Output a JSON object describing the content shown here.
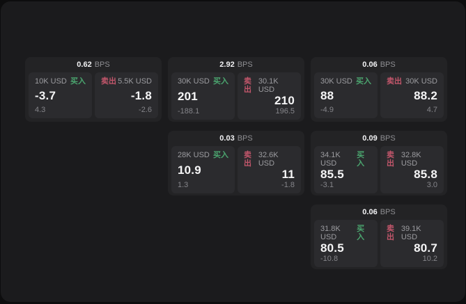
{
  "theme": {
    "background": "#0d0d0e",
    "surface": "#1b1b1d",
    "card": "#232325",
    "panel": "#2b2b2e",
    "buy_green": "#4ba56f",
    "sell_red": "#c2566b",
    "text_primary": "#f5f5f6",
    "text_muted": "#9c9ca0"
  },
  "cards": [
    {
      "bps_value": "0.62",
      "bps_unit": "BPS",
      "buy": {
        "amount": "10K USD",
        "side_label": "买入",
        "value": "-3.7",
        "sub_value": "4.3"
      },
      "sell": {
        "side_label": "卖出",
        "amount": "5.5K USD",
        "value": "-1.8",
        "sub_value": "-2.6"
      }
    },
    {
      "bps_value": "2.92",
      "bps_unit": "BPS",
      "buy": {
        "amount": "30K USD",
        "side_label": "买入",
        "value": "201",
        "sub_value": "-188.1"
      },
      "sell": {
        "side_label": "卖出",
        "amount": "30.1K USD",
        "value": "210",
        "sub_value": "196.5"
      }
    },
    {
      "bps_value": "0.06",
      "bps_unit": "BPS",
      "buy": {
        "amount": "30K USD",
        "side_label": "买入",
        "value": "88",
        "sub_value": "-4.9"
      },
      "sell": {
        "side_label": "卖出",
        "amount": "30K USD",
        "value": "88.2",
        "sub_value": "4.7"
      }
    },
    {
      "bps_value": "0.03",
      "bps_unit": "BPS",
      "buy": {
        "amount": "28K USD",
        "side_label": "买入",
        "value": "10.9",
        "sub_value": "1.3"
      },
      "sell": {
        "side_label": "卖出",
        "amount": "32.6K USD",
        "value": "11",
        "sub_value": "-1.8"
      }
    },
    {
      "bps_value": "0.09",
      "bps_unit": "BPS",
      "buy": {
        "amount": "34.1K USD",
        "side_label": "买入",
        "value": "85.5",
        "sub_value": "-3.1"
      },
      "sell": {
        "side_label": "卖出",
        "amount": "32.8K USD",
        "value": "85.8",
        "sub_value": "3.0"
      }
    },
    {
      "bps_value": "0.06",
      "bps_unit": "BPS",
      "buy": {
        "amount": "31.8K USD",
        "side_label": "买入",
        "value": "80.5",
        "sub_value": "-10.8"
      },
      "sell": {
        "side_label": "卖出",
        "amount": "39.1K USD",
        "value": "80.7",
        "sub_value": "10.2"
      }
    }
  ]
}
